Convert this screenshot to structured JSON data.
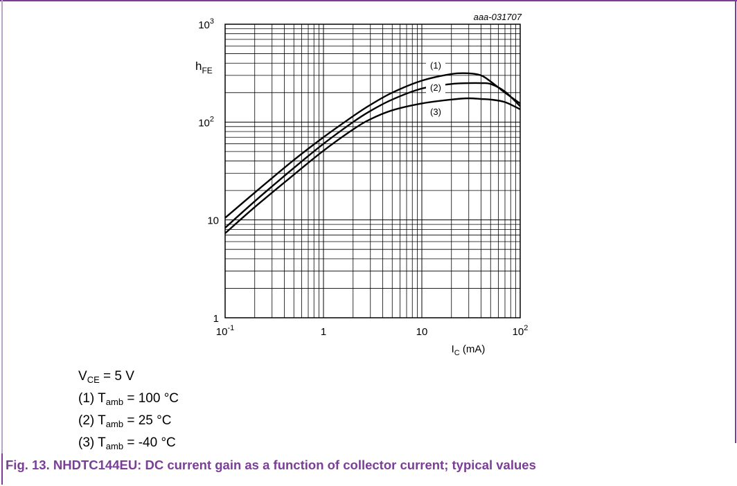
{
  "figure": {
    "id_label": "aaa-031707",
    "caption": "Fig. 13.  NHDTC144EU: DC current gain as a function of collector current; typical values"
  },
  "conditions": {
    "vce": {
      "sym": "V",
      "sub": "CE",
      "rest": " = 5 V"
    },
    "curves": [
      {
        "prefix": "(1) T",
        "sub": "amb",
        "rest": " = 100 °C"
      },
      {
        "prefix": "(2) T",
        "sub": "amb",
        "rest": " = 25 °C"
      },
      {
        "prefix": "(3) T",
        "sub": "amb",
        "rest": " = -40 °C"
      }
    ]
  },
  "colors": {
    "accent": "#7a3e96",
    "frame_light": "#b9a3c7",
    "line": "#000000"
  },
  "chart_data": {
    "type": "line",
    "xscale": "log",
    "yscale": "log",
    "xlim": [
      0.1,
      100
    ],
    "ylim": [
      1,
      1000
    ],
    "grid": true,
    "ylabel": {
      "main": "h",
      "sub": "FE"
    },
    "xlabel": {
      "main": "I",
      "sub": "C",
      "rest": " (mA)"
    },
    "x_ticks": [
      {
        "value": 0.1,
        "base": "10",
        "sup": "-1"
      },
      {
        "value": 1,
        "base": "1",
        "sup": ""
      },
      {
        "value": 10,
        "base": "10",
        "sup": ""
      },
      {
        "value": 100,
        "base": "10",
        "sup": "2"
      }
    ],
    "y_ticks": [
      {
        "value": 1,
        "base": "1",
        "sup": ""
      },
      {
        "value": 10,
        "base": "10",
        "sup": ""
      },
      {
        "value": 100,
        "base": "10",
        "sup": "2"
      },
      {
        "value": 1000,
        "base": "10",
        "sup": "3"
      }
    ],
    "series": [
      {
        "name": "(1)",
        "x": [
          0.1,
          0.2,
          0.5,
          1,
          2,
          3,
          5,
          10,
          20,
          30,
          40,
          50,
          70,
          100
        ],
        "y": [
          10.5,
          19,
          41,
          70,
          115,
          150,
          200,
          265,
          310,
          315,
          300,
          260,
          200,
          155
        ]
      },
      {
        "name": "(2)",
        "x": [
          0.1,
          0.2,
          0.5,
          1,
          2,
          3,
          5,
          10,
          20,
          30,
          40,
          50,
          70,
          100
        ],
        "y": [
          8.3,
          15.5,
          34,
          60,
          100,
          130,
          170,
          220,
          245,
          250,
          250,
          245,
          205,
          145
        ]
      },
      {
        "name": "(3)",
        "x": [
          0.1,
          0.2,
          0.5,
          1,
          2,
          3,
          5,
          10,
          20,
          30,
          40,
          50,
          70,
          100
        ],
        "y": [
          7.3,
          13.5,
          29,
          51,
          84,
          107,
          132,
          155,
          170,
          175,
          172,
          170,
          160,
          135
        ]
      }
    ]
  }
}
